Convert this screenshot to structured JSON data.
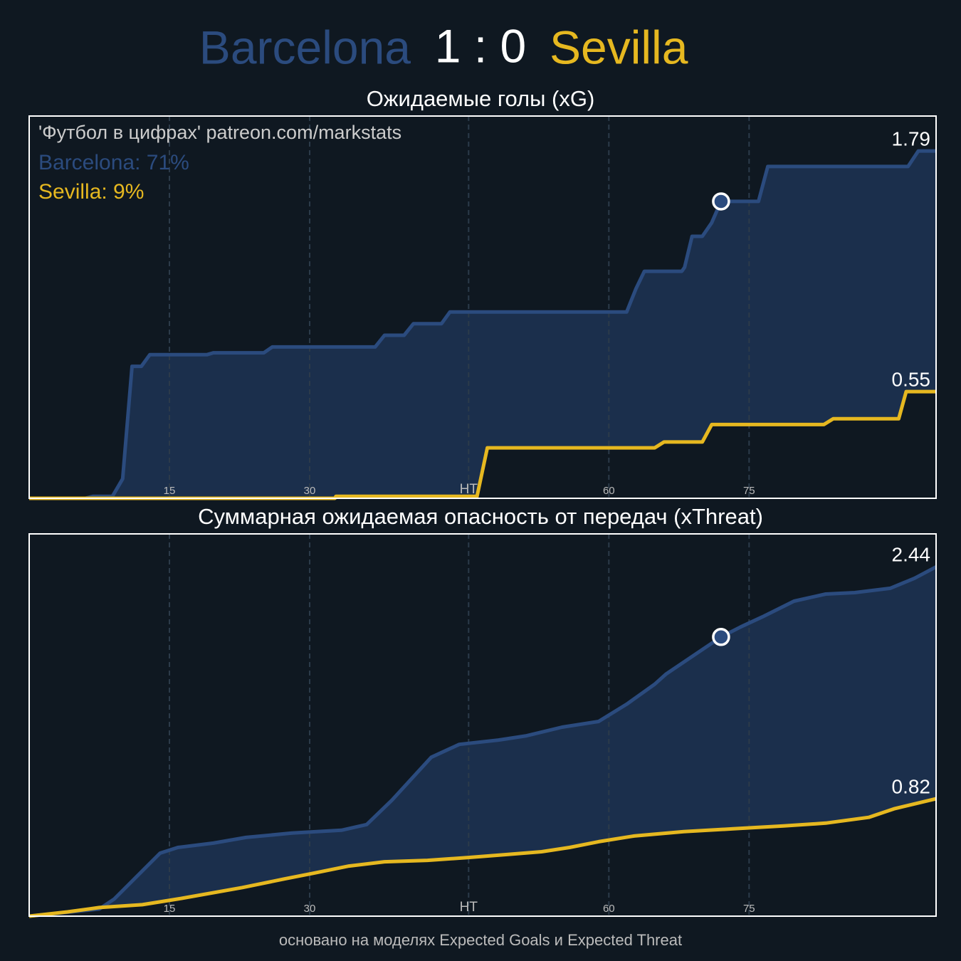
{
  "header": {
    "home": "Barcelona",
    "score": "1 : 0",
    "away": "Sevilla"
  },
  "footer": "основано на моделях Expected Goals и Expected Threat",
  "chart_data": [
    {
      "type": "line",
      "title": "Ожидаемые голы (xG)",
      "annotations": [
        "'Футбол в цифрах' patreon.com/markstats"
      ],
      "legend": [
        "Barcelona: 71%",
        "Sevilla: 9%"
      ],
      "xlim": [
        0,
        97
      ],
      "ylim": [
        0,
        1.97
      ],
      "xticks": [
        15,
        30,
        {
          "value": 47,
          "label": "HT"
        },
        {
          "value": 62,
          "label": "60"
        },
        {
          "value": 77,
          "label": "75"
        }
      ],
      "grid": true,
      "series": [
        {
          "name": "Barcelona",
          "color": "#2b4b7e",
          "x": [
            0,
            6.0,
            6.8,
            8.9,
            10.0,
            11.0,
            12.0,
            12.9,
            19.0,
            19.7,
            25.1,
            26.0,
            37.0,
            38.0,
            40.1,
            41.1,
            44.1,
            45.0,
            63.9,
            64.9,
            65.8,
            69.8,
            70.1,
            70.9,
            72.0,
            73.0,
            74.0,
            78.0,
            79.0,
            94.0,
            95.1,
            97.0
          ],
          "values": [
            0,
            0,
            0.01,
            0.01,
            0.1,
            0.68,
            0.68,
            0.74,
            0.74,
            0.75,
            0.75,
            0.78,
            0.78,
            0.84,
            0.84,
            0.9,
            0.9,
            0.96,
            0.96,
            1.08,
            1.17,
            1.17,
            1.19,
            1.35,
            1.35,
            1.42,
            1.53,
            1.53,
            1.71,
            1.71,
            1.79,
            1.79
          ]
        },
        {
          "name": "Sevilla",
          "color": "#e6b820",
          "x": [
            0,
            32.7,
            32.8,
            47.9,
            49.0,
            66.9,
            67.9,
            72.0,
            73.0,
            85.0,
            86.0,
            93.0,
            93.8,
            97.0
          ],
          "values": [
            0,
            0,
            0.01,
            0.01,
            0.26,
            0.26,
            0.29,
            0.29,
            0.38,
            0.38,
            0.41,
            0.41,
            0.55,
            0.55
          ]
        }
      ],
      "goals": [
        {
          "x": 74.0,
          "y": 1.53
        }
      ]
    },
    {
      "type": "line",
      "title": "Суммарная ожидаемая опасность от передач (xThreat)",
      "xlim": [
        0,
        97
      ],
      "ylim": [
        0,
        2.67
      ],
      "xticks": [
        15,
        30,
        {
          "value": 47,
          "label": "HT"
        },
        {
          "value": 62,
          "label": "60"
        },
        {
          "value": 77,
          "label": "75"
        }
      ],
      "grid": true,
      "series": [
        {
          "name": "Barcelona",
          "color": "#2b4b7e",
          "x": [
            0,
            7.5,
            9.1,
            14.0,
            15.9,
            19.7,
            23.2,
            28.1,
            33.4,
            36.1,
            38.8,
            43.0,
            46.0,
            50.2,
            53.2,
            57.0,
            60.9,
            63.9,
            66.9,
            68.1,
            74.0,
            76.1,
            78.4,
            81.8,
            85.2,
            88.3,
            92.1,
            94.7,
            97.0
          ],
          "values": [
            0,
            0.05,
            0.12,
            0.44,
            0.48,
            0.51,
            0.55,
            0.58,
            0.6,
            0.64,
            0.81,
            1.11,
            1.2,
            1.23,
            1.26,
            1.32,
            1.36,
            1.48,
            1.62,
            1.69,
            1.95,
            2.02,
            2.09,
            2.2,
            2.25,
            2.26,
            2.29,
            2.36,
            2.44
          ]
        },
        {
          "name": "Sevilla",
          "color": "#e6b820",
          "x": [
            0,
            4.1,
            7.5,
            12.1,
            15.9,
            22.8,
            27.3,
            30.4,
            34.2,
            38.0,
            42.6,
            47.1,
            51.0,
            54.8,
            57.8,
            60.9,
            64.7,
            70.0,
            75.3,
            80.7,
            85.2,
            89.8,
            92.5,
            97.0
          ],
          "values": [
            0,
            0.03,
            0.06,
            0.08,
            0.12,
            0.2,
            0.26,
            0.3,
            0.35,
            0.38,
            0.39,
            0.41,
            0.43,
            0.45,
            0.48,
            0.52,
            0.56,
            0.59,
            0.61,
            0.63,
            0.65,
            0.69,
            0.75,
            0.82
          ]
        }
      ],
      "goals": [
        {
          "x": 74.0,
          "y": 1.95
        }
      ]
    }
  ]
}
